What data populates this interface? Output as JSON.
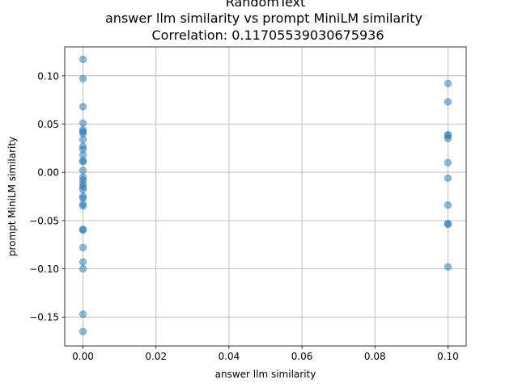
{
  "chart_data": {
    "type": "scatter",
    "title_lines": [
      "RandomText",
      "answer llm similarity vs prompt MiniLM similarity",
      "Correlation: 0.11705539030675936"
    ],
    "xlabel": "answer llm similarity",
    "ylabel": "prompt MiniLM similarity",
    "xlim": [
      -0.005,
      0.105
    ],
    "ylim": [
      -0.18,
      0.13
    ],
    "xticks": [
      "0.00",
      "0.02",
      "0.04",
      "0.06",
      "0.08",
      "0.10"
    ],
    "yticks": [
      "−0.15",
      "−0.10",
      "−0.05",
      "0.00",
      "0.05",
      "0.10"
    ],
    "grid": true,
    "color": "#1f77b4",
    "points": [
      {
        "x": 0.0,
        "y": 0.117
      },
      {
        "x": 0.0,
        "y": 0.097
      },
      {
        "x": 0.0,
        "y": 0.068
      },
      {
        "x": 0.0,
        "y": 0.051
      },
      {
        "x": 0.0,
        "y": 0.044
      },
      {
        "x": 0.0,
        "y": 0.042
      },
      {
        "x": 0.0,
        "y": 0.04
      },
      {
        "x": 0.0,
        "y": 0.034
      },
      {
        "x": 0.0,
        "y": 0.027
      },
      {
        "x": 0.0,
        "y": 0.024
      },
      {
        "x": 0.0,
        "y": 0.018
      },
      {
        "x": 0.0,
        "y": 0.012
      },
      {
        "x": 0.0,
        "y": 0.011
      },
      {
        "x": 0.0,
        "y": 0.002
      },
      {
        "x": 0.0,
        "y": -0.005
      },
      {
        "x": 0.0,
        "y": -0.008
      },
      {
        "x": 0.0,
        "y": -0.012
      },
      {
        "x": 0.0,
        "y": -0.015
      },
      {
        "x": 0.0,
        "y": -0.018
      },
      {
        "x": 0.0,
        "y": -0.025
      },
      {
        "x": 0.0,
        "y": -0.027
      },
      {
        "x": 0.0,
        "y": -0.033
      },
      {
        "x": 0.0,
        "y": -0.035
      },
      {
        "x": 0.0,
        "y": -0.059
      },
      {
        "x": 0.0,
        "y": -0.06
      },
      {
        "x": 0.0,
        "y": -0.078
      },
      {
        "x": 0.0,
        "y": -0.093
      },
      {
        "x": 0.0,
        "y": -0.1
      },
      {
        "x": 0.0,
        "y": -0.147
      },
      {
        "x": 0.0,
        "y": -0.165
      },
      {
        "x": 0.1,
        "y": 0.092
      },
      {
        "x": 0.1,
        "y": 0.073
      },
      {
        "x": 0.1,
        "y": 0.039
      },
      {
        "x": 0.1,
        "y": 0.038
      },
      {
        "x": 0.1,
        "y": 0.035
      },
      {
        "x": 0.1,
        "y": 0.01
      },
      {
        "x": 0.1,
        "y": -0.006
      },
      {
        "x": 0.1,
        "y": -0.034
      },
      {
        "x": 0.1,
        "y": -0.053
      },
      {
        "x": 0.1,
        "y": -0.054
      },
      {
        "x": 0.1,
        "y": -0.098
      }
    ]
  }
}
